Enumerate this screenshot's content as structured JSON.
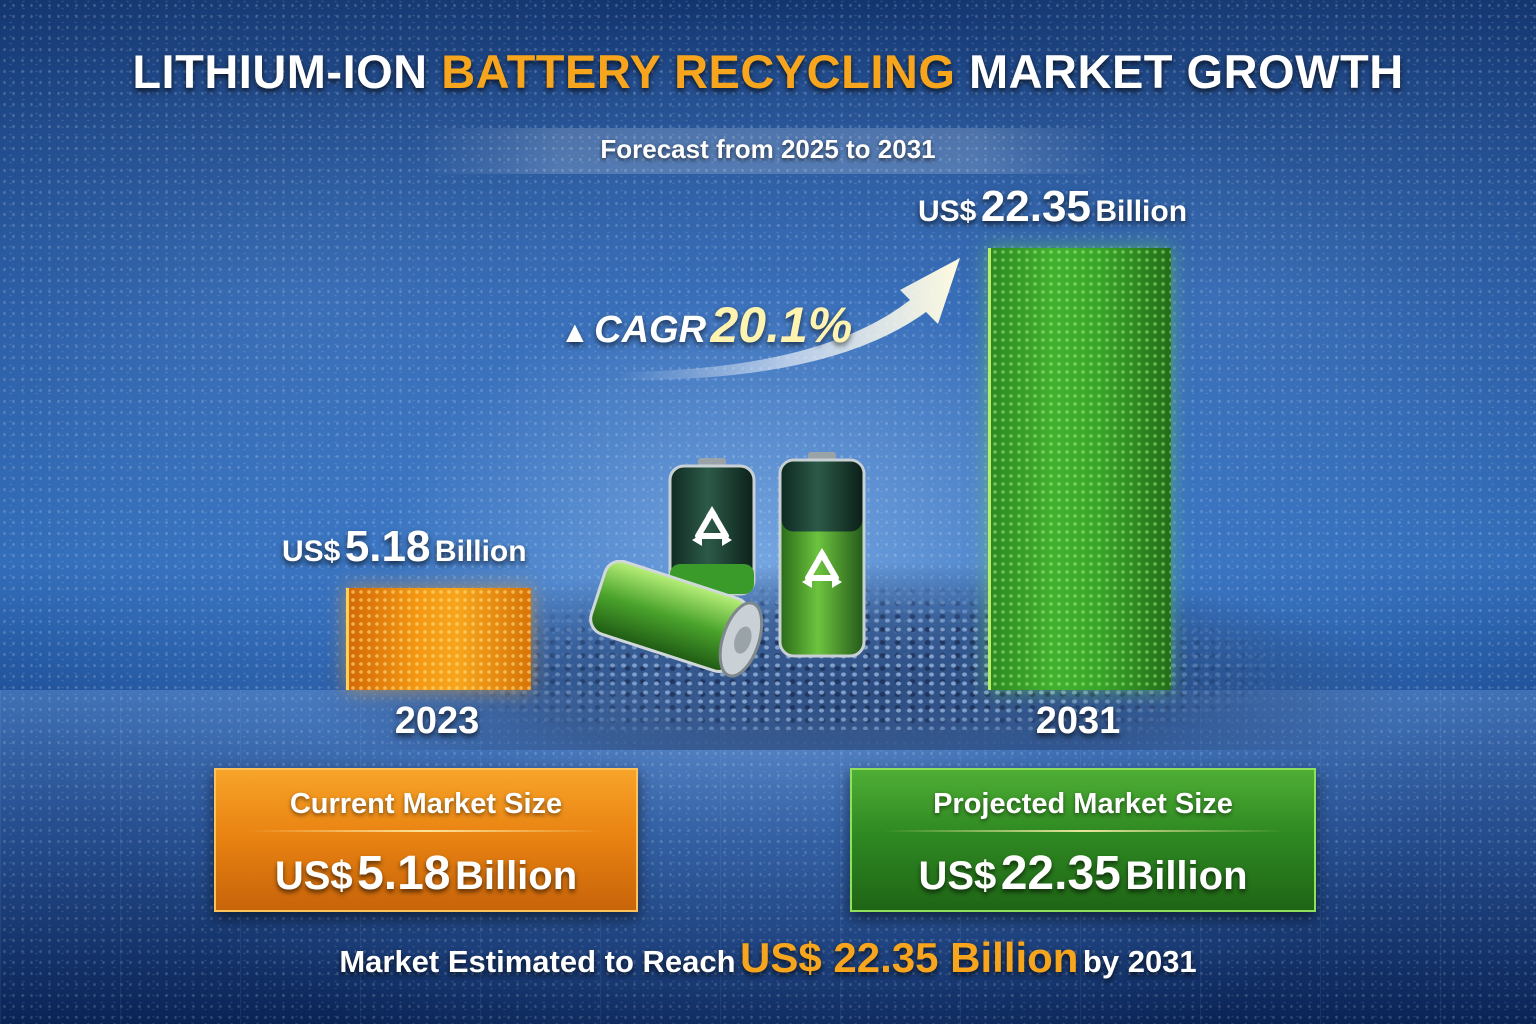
{
  "header": {
    "title_part1": "LITHIUM-ION",
    "title_highlight": "BATTERY RECYCLING",
    "title_part2": "MARKET GROWTH",
    "subtitle": "Forecast from 2025 to 2031"
  },
  "chart_data": {
    "type": "bar",
    "categories": [
      "2023",
      "2031"
    ],
    "values": [
      5.18,
      22.35
    ],
    "ylim": [
      0,
      24
    ],
    "data_labels": [
      {
        "currency": "US$",
        "value": "5.18",
        "unit": "Billion"
      },
      {
        "currency": "US$",
        "value": "22.35",
        "unit": "Billion"
      }
    ],
    "annotation": {
      "symbol": "▲",
      "label": "CAGR",
      "value": "20.1%"
    },
    "colors": [
      "#f59a14",
      "#3aa62a"
    ]
  },
  "panels": {
    "current": {
      "title": "Current  Market Size",
      "currency": "US$",
      "value": "5.18",
      "unit": "Billion"
    },
    "projected": {
      "title": "Projected Market Size",
      "currency": "US$",
      "value": "22.35",
      "unit": "Billion"
    }
  },
  "footer": {
    "prefix": "Market Estimated to Reach",
    "highlight": "US$ 22.35 Billion",
    "suffix": "by 2031"
  },
  "icons": [
    "recycle-icon",
    "battery-icon",
    "growth-arrow-icon"
  ]
}
